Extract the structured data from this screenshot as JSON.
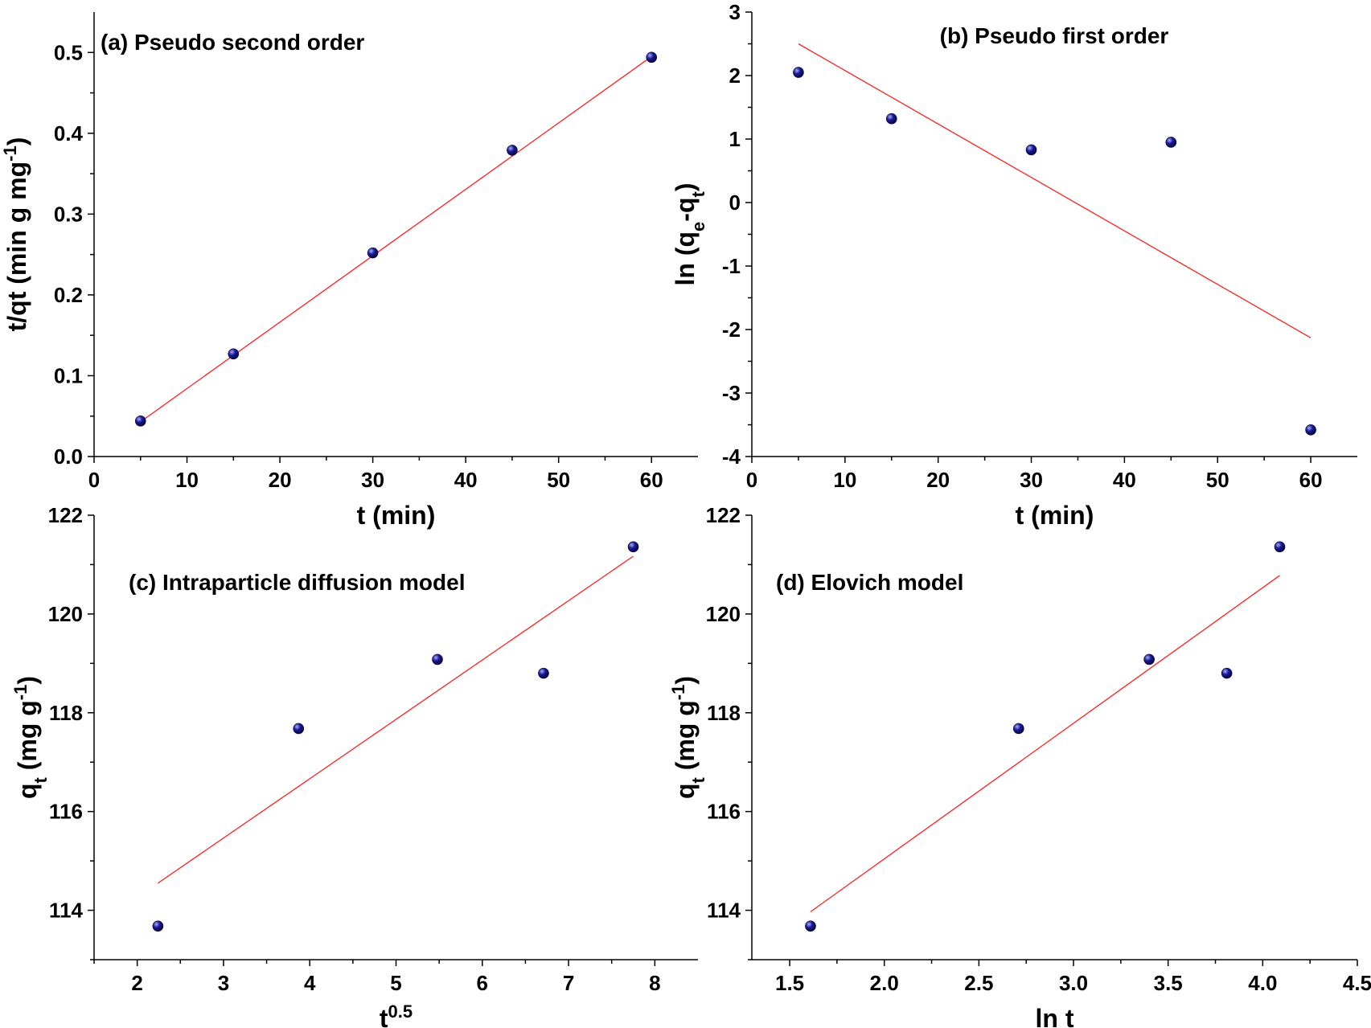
{
  "colors": {
    "point": "#0a0a78",
    "point_highlight": "#a8b0f0",
    "fit_line": "#ff2020",
    "axis": "#000000"
  },
  "chart_data": [
    {
      "type": "scatter",
      "title": "(a) Pseudo second order",
      "xlabel": "t (min)",
      "ylabel": {
        "text": "t/qt (min g mg",
        "sup": "-1",
        "tail": ")"
      },
      "xlim": [
        0,
        65
      ],
      "ylim": [
        0,
        0.55
      ],
      "xticks": [
        0,
        10,
        20,
        30,
        40,
        50,
        60
      ],
      "yticks": [
        0.0,
        0.1,
        0.2,
        0.3,
        0.4,
        0.5
      ],
      "xtick_labels": [
        "0",
        "10",
        "20",
        "30",
        "40",
        "50",
        "60"
      ],
      "ytick_labels": [
        "0.0",
        "0.1",
        "0.2",
        "0.3",
        "0.4",
        "0.5"
      ],
      "points": [
        [
          5,
          0.044
        ],
        [
          15,
          0.127
        ],
        [
          30,
          0.252
        ],
        [
          45,
          0.379
        ],
        [
          60,
          0.494
        ]
      ],
      "fit": [
        [
          5,
          0.043
        ],
        [
          60,
          0.495
        ]
      ],
      "grid": false,
      "legend": "none"
    },
    {
      "type": "scatter",
      "title": "(b) Pseudo first order",
      "xlabel": "t (min)",
      "ylabel": {
        "text": "ln (q",
        "sub": "e",
        "mid": "-q",
        "sub2": "t",
        "tail": ")"
      },
      "xlim": [
        0,
        65
      ],
      "ylim": [
        -4,
        3
      ],
      "xticks": [
        0,
        10,
        20,
        30,
        40,
        50,
        60
      ],
      "yticks": [
        -4,
        -3,
        -2,
        -1,
        0,
        1,
        2,
        3
      ],
      "xtick_labels": [
        "0",
        "10",
        "20",
        "30",
        "40",
        "50",
        "60"
      ],
      "ytick_labels": [
        "-4",
        "-3",
        "-2",
        "-1",
        "0",
        "1",
        "2",
        "3"
      ],
      "points": [
        [
          5,
          2.05
        ],
        [
          15,
          1.32
        ],
        [
          30,
          0.83
        ],
        [
          45,
          0.95
        ],
        [
          60,
          -3.58
        ]
      ],
      "fit": [
        [
          5,
          2.5
        ],
        [
          60,
          -2.13
        ]
      ],
      "grid": false,
      "legend": "none"
    },
    {
      "type": "scatter",
      "title": "(c) Intraparticle diffusion model",
      "xlabel": {
        "text": "t",
        "sup": "0.5"
      },
      "ylabel": {
        "text": "q",
        "sub": "t",
        "mid": " (mg g",
        "sup": "-1",
        "tail": ")"
      },
      "xlim": [
        1.5,
        8.5
      ],
      "ylim": [
        113,
        122
      ],
      "xticks": [
        2,
        3,
        4,
        5,
        6,
        7,
        8
      ],
      "yticks": [
        114,
        116,
        118,
        120,
        122
      ],
      "xtick_labels": [
        "2",
        "3",
        "4",
        "5",
        "6",
        "7",
        "8"
      ],
      "ytick_labels": [
        "114",
        "116",
        "118",
        "120",
        "122"
      ],
      "points": [
        [
          2.24,
          113.68
        ],
        [
          3.87,
          117.68
        ],
        [
          5.48,
          119.08
        ],
        [
          6.71,
          118.8
        ],
        [
          7.75,
          121.36
        ]
      ],
      "fit": [
        [
          2.24,
          114.55
        ],
        [
          7.75,
          121.17
        ]
      ],
      "grid": false,
      "legend": "none"
    },
    {
      "type": "scatter",
      "title": "(d) Elovich model",
      "xlabel": "ln t",
      "ylabel": {
        "text": "q",
        "sub": "t",
        "mid": " (mg g",
        "sup": "-1",
        "tail": ")"
      },
      "xlim": [
        1.3,
        4.5
      ],
      "ylim": [
        113,
        122
      ],
      "xticks": [
        1.5,
        2.0,
        2.5,
        3.0,
        3.5,
        4.0,
        4.5
      ],
      "yticks": [
        114,
        116,
        118,
        120,
        122
      ],
      "xtick_labels": [
        "1.5",
        "2.0",
        "2.5",
        "3.0",
        "3.5",
        "4.0",
        "4.5"
      ],
      "ytick_labels": [
        "114",
        "116",
        "118",
        "120",
        "122"
      ],
      "points": [
        [
          1.61,
          113.68
        ],
        [
          2.71,
          117.68
        ],
        [
          3.4,
          119.08
        ],
        [
          3.81,
          118.8
        ],
        [
          4.09,
          121.36
        ]
      ],
      "fit": [
        [
          1.61,
          113.97
        ],
        [
          4.09,
          120.78
        ]
      ],
      "grid": false,
      "legend": "none"
    }
  ]
}
